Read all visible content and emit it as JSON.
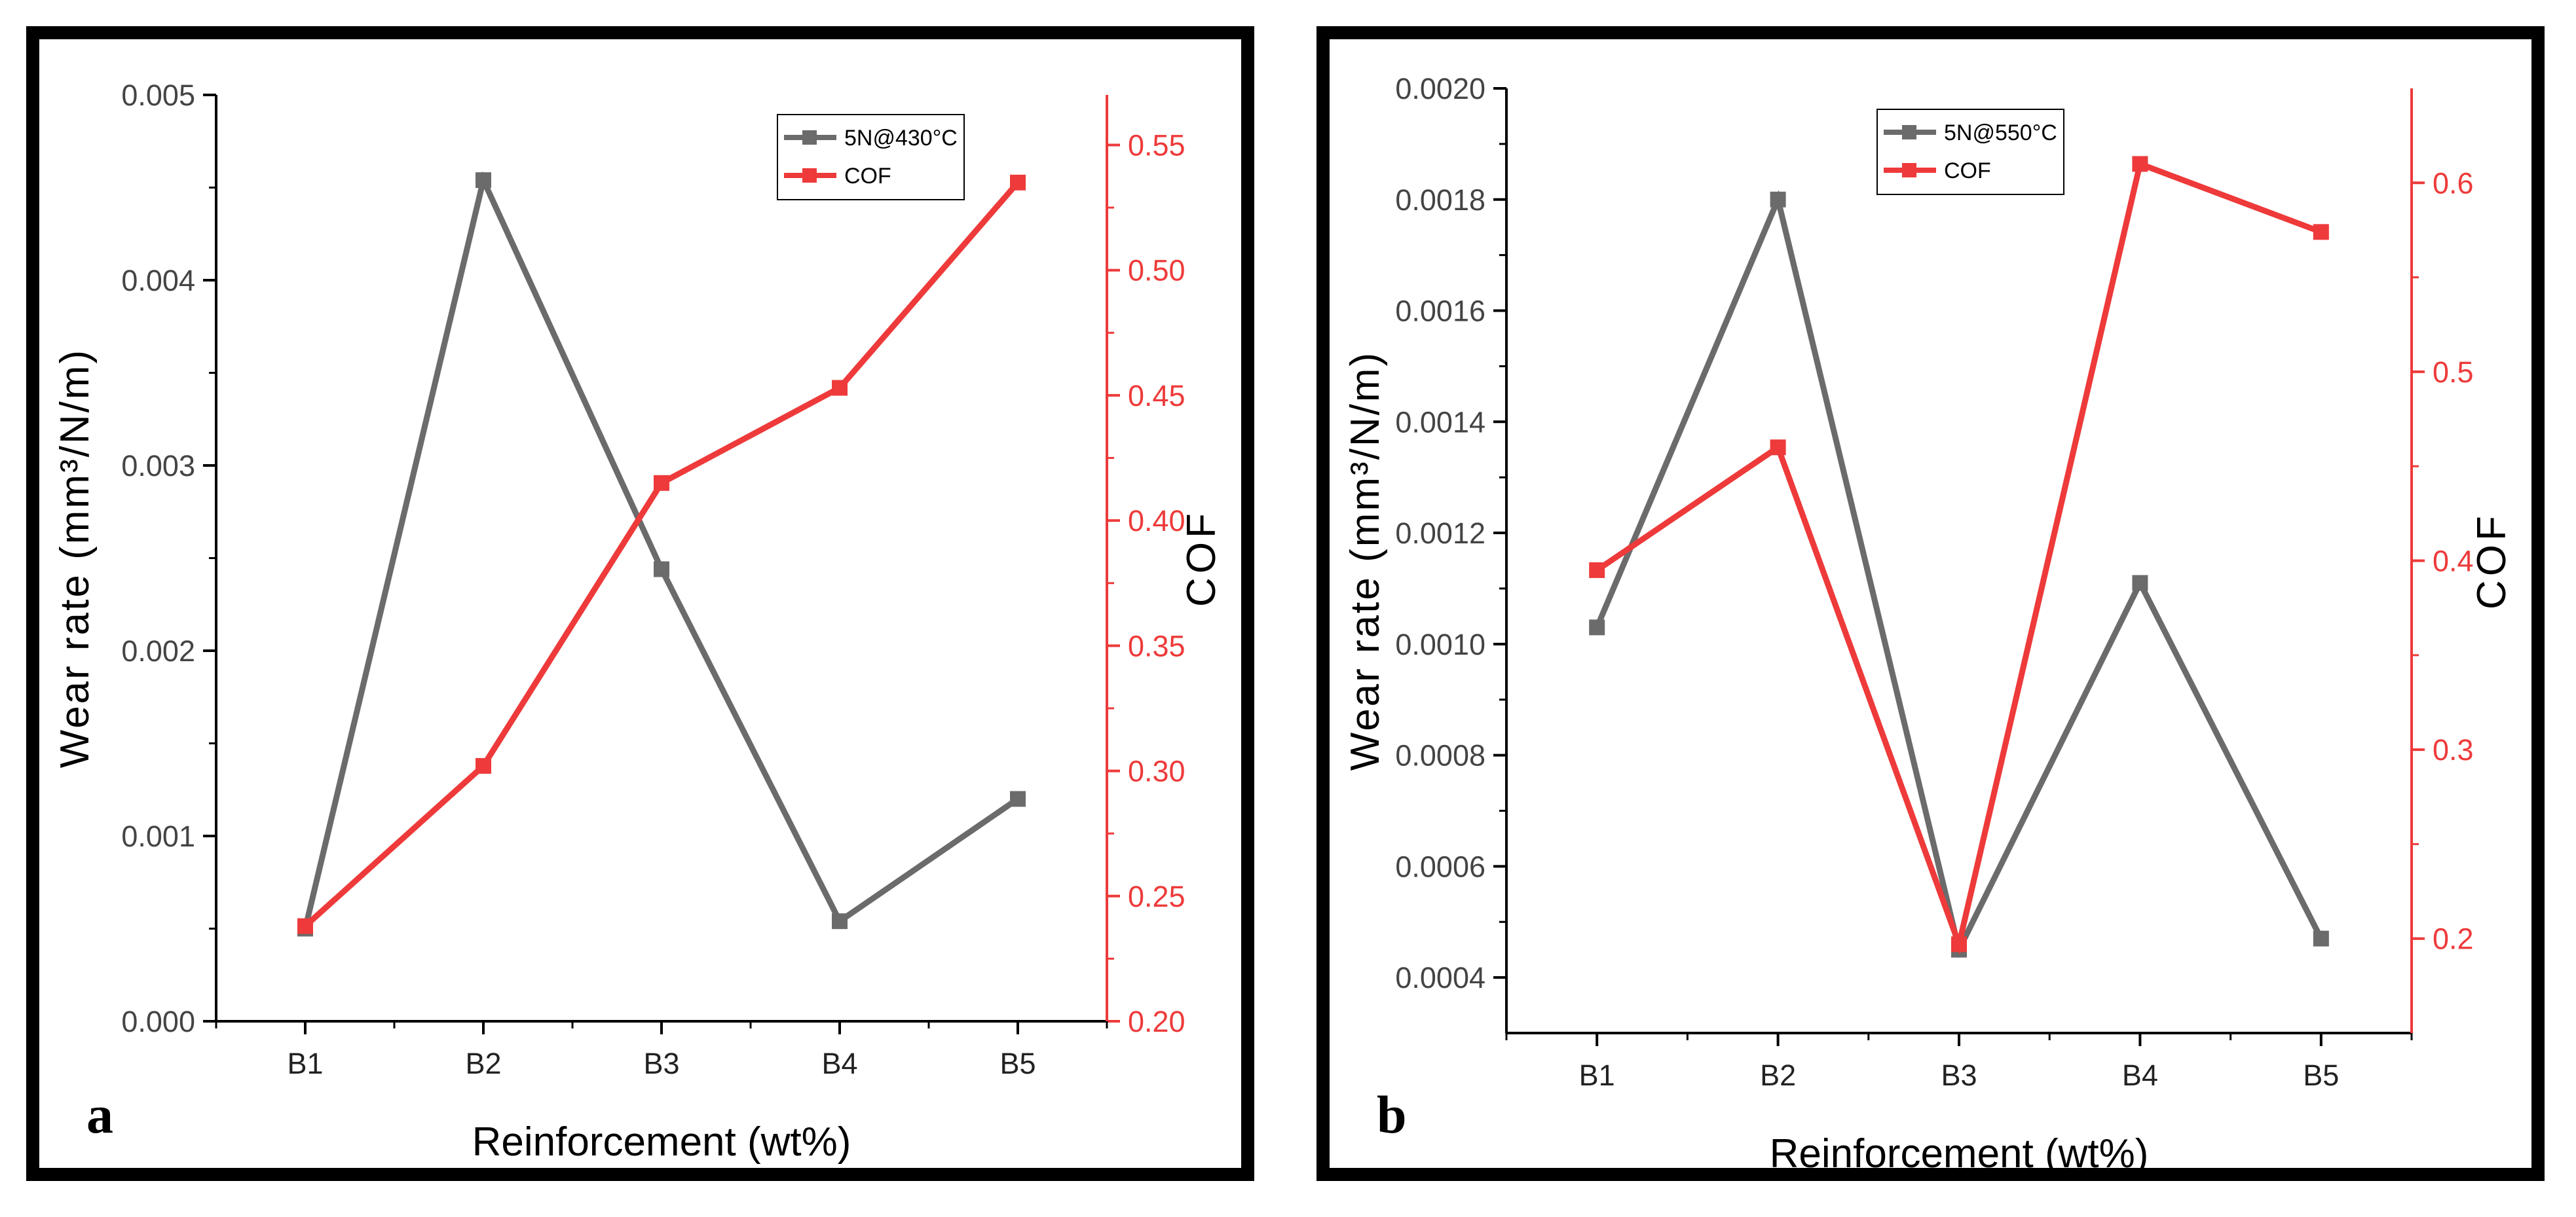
{
  "colors": {
    "wear": "#6b6b6b",
    "cof": "#ee3a3a",
    "axis": "#000000",
    "background": "#ffffff"
  },
  "chart_data": [
    {
      "type": "line",
      "panel_label": "a",
      "categories": [
        "B1",
        "B2",
        "B3",
        "B4",
        "B5"
      ],
      "xlabel": "Reinforcement (wt%)",
      "ylabel_left": "Wear rate (mm³/N/m)",
      "ylabel_right": "COF",
      "left_axis": {
        "ylim": [
          0.0,
          0.005
        ],
        "ticks": [
          0.0,
          0.001,
          0.002,
          0.003,
          0.004,
          0.005
        ],
        "tick_labels": [
          "0.000",
          "0.001",
          "0.002",
          "0.003",
          "0.004",
          "0.005"
        ]
      },
      "right_axis": {
        "ylim": [
          0.2,
          0.57
        ],
        "ticks": [
          0.2,
          0.25,
          0.3,
          0.35,
          0.4,
          0.45,
          0.5,
          0.55
        ],
        "tick_labels": [
          "0.20",
          "0.25",
          "0.30",
          "0.35",
          "0.40",
          "0.45",
          "0.50",
          "0.55"
        ]
      },
      "series": [
        {
          "name": "5N@430°C",
          "axis": "left",
          "color": "#6b6b6b",
          "values": [
            0.0005,
            0.00454,
            0.00244,
            0.00054,
            0.0012
          ]
        },
        {
          "name": "COF",
          "axis": "right",
          "color": "#ee3a3a",
          "values": [
            0.238,
            0.302,
            0.415,
            0.453,
            0.535
          ]
        }
      ],
      "legend": {
        "placement": "top-right",
        "entries": [
          "5N@430°C",
          "COF"
        ]
      }
    },
    {
      "type": "line",
      "panel_label": "b",
      "categories": [
        "B1",
        "B2",
        "B3",
        "B4",
        "B5"
      ],
      "xlabel": "Reinforcement (wt%)",
      "ylabel_left": "Wear rate (mm³/N/m)",
      "ylabel_right": "COF",
      "left_axis": {
        "ylim": [
          0.0003,
          0.002
        ],
        "ticks": [
          0.0004,
          0.0006,
          0.0008,
          0.001,
          0.0012,
          0.0014,
          0.0016,
          0.0018,
          0.002
        ],
        "tick_labels": [
          "0.0004",
          "0.0006",
          "0.0008",
          "0.0010",
          "0.0012",
          "0.0014",
          "0.0016",
          "0.0018",
          "0.0020"
        ]
      },
      "right_axis": {
        "ylim": [
          0.15,
          0.65
        ],
        "ticks": [
          0.2,
          0.3,
          0.4,
          0.5,
          0.6
        ],
        "tick_labels": [
          "0.2",
          "0.3",
          "0.4",
          "0.5",
          "0.6"
        ]
      },
      "series": [
        {
          "name": "5N@550°C",
          "axis": "left",
          "color": "#6b6b6b",
          "values": [
            0.00103,
            0.0018,
            0.00045,
            0.00111,
            0.00047
          ]
        },
        {
          "name": "COF",
          "axis": "right",
          "color": "#ee3a3a",
          "values": [
            0.395,
            0.46,
            0.197,
            0.61,
            0.574
          ]
        }
      ],
      "legend": {
        "placement": "top-center",
        "entries": [
          "5N@550°C",
          "COF"
        ]
      }
    }
  ]
}
